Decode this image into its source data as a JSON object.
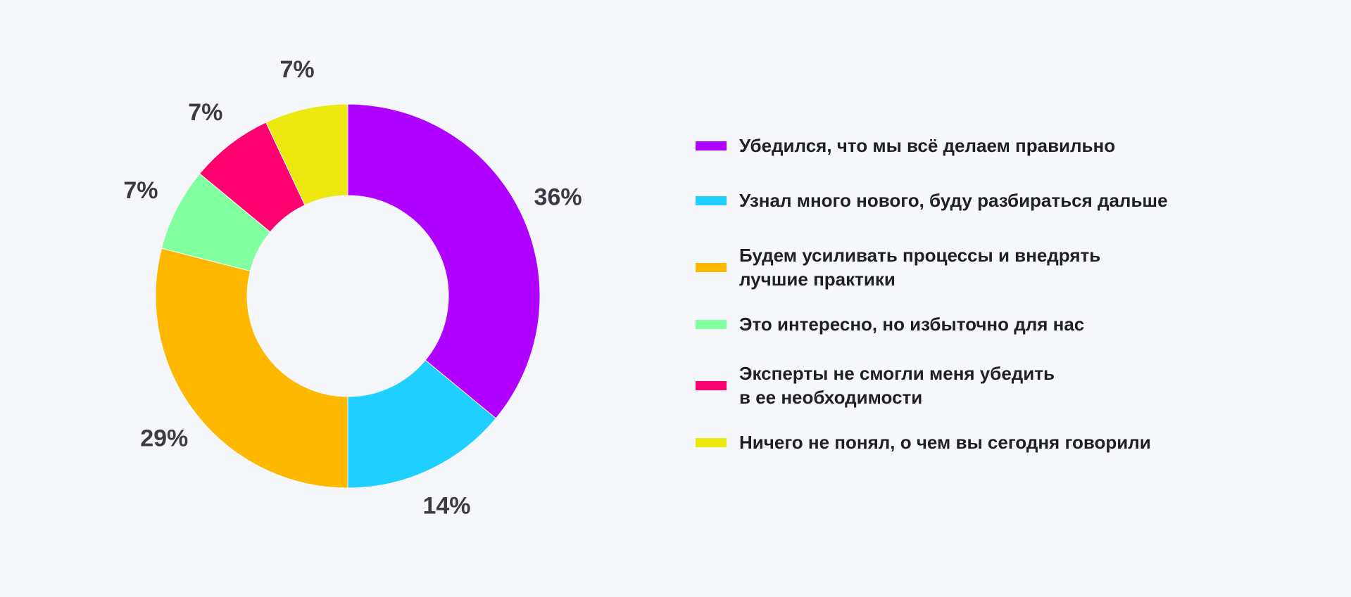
{
  "chart_data": {
    "type": "pie",
    "donut": true,
    "title": "",
    "series": [
      {
        "label": "Убедился, что мы всё делаем правильно",
        "value": 36,
        "display": "36%",
        "color": "#b000ff"
      },
      {
        "label": "Узнал много нового, буду разбираться дальше",
        "value": 14,
        "display": "14%",
        "color": "#1fcfff"
      },
      {
        "label": "Будем усиливать процессы и внедрять\nлучшие практики",
        "value": 29,
        "display": "29%",
        "color": "#ffb800"
      },
      {
        "label": "Это интересно, но избыточно для нас",
        "value": 7,
        "display": "7%",
        "color": "#82ff9e"
      },
      {
        "label": "Эксперты не смогли меня убедить\nв ее необходимости",
        "value": 7,
        "display": "7%",
        "color": "#ff0070"
      },
      {
        "label": "Ничего не понял, о чем вы сегодня говорили",
        "value": 7,
        "display": "7%",
        "color": "#ebe70f"
      }
    ],
    "legend_position": "right"
  }
}
